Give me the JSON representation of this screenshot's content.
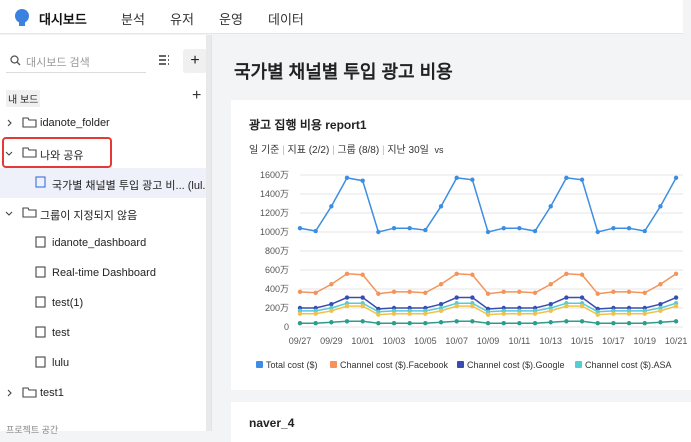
{
  "nav": {
    "brand": "대시보드",
    "items": [
      "분석",
      "유저",
      "운영",
      "데이터"
    ]
  },
  "sidebar": {
    "search_placeholder": "대시보드 검색",
    "section": "내 보드",
    "tree": [
      "idanote_folder",
      "나와 공유",
      "국가별 채널별 투입 광고 비... (lul...",
      "그룹이 지정되지 않음",
      "idanote_dashboard",
      "Real-time Dashboard",
      "test(1)",
      "test",
      "lulu",
      "test1"
    ],
    "footer": "프로젝트 공간"
  },
  "page_title": "국가별 채널별 투입 광고 비용",
  "card": {
    "title": "광고 집행 비용 report1",
    "filters": [
      "일 기준",
      "지표 (2/2)",
      "그룹 (8/8)",
      "지난 30일"
    ],
    "compare": "vs"
  },
  "chart_data": {
    "type": "line",
    "categories": [
      "09/27",
      null,
      "09/29",
      null,
      "10/01",
      null,
      "10/03",
      null,
      "10/05",
      null,
      "10/07",
      null,
      "10/09",
      null,
      "10/11",
      null,
      "10/13",
      null,
      "10/15",
      null,
      "10/17",
      null,
      "10/19",
      null,
      "10/21"
    ],
    "ylim": [
      0,
      1600
    ],
    "yticks": [
      0,
      {
        "value": 200,
        "label": "200万"
      },
      {
        "value": 400,
        "label": "400万"
      },
      {
        "value": 600,
        "label": "600万"
      },
      {
        "value": 800,
        "label": "800万"
      },
      {
        "value": 1000,
        "label": "1000万"
      },
      {
        "value": 1200,
        "label": "1200万"
      },
      {
        "value": 1400,
        "label": "1400万"
      },
      {
        "value": 1600,
        "label": "1600万"
      }
    ],
    "grid": true,
    "series": [
      {
        "name": "Total cost ($)",
        "color": "#3d8ee2",
        "values": [
          1040,
          1010,
          1270,
          1570,
          1540,
          1000,
          1040,
          1040,
          1020,
          1270,
          1570,
          1550,
          1000,
          1040,
          1040,
          1010,
          1270,
          1570,
          1550,
          1000,
          1040,
          1040,
          1010,
          1270,
          1570
        ]
      },
      {
        "name": "Channel cost ($).Facebook",
        "color": "#f4935a",
        "values": [
          370,
          360,
          450,
          560,
          550,
          350,
          370,
          370,
          360,
          450,
          560,
          550,
          350,
          370,
          370,
          360,
          450,
          560,
          550,
          350,
          370,
          370,
          360,
          450,
          560
        ]
      },
      {
        "name": "Channel cost ($).Google",
        "color": "#3a4cb0",
        "values": [
          200,
          200,
          240,
          310,
          310,
          190,
          200,
          200,
          200,
          240,
          310,
          310,
          190,
          200,
          200,
          200,
          240,
          310,
          310,
          190,
          200,
          200,
          200,
          240,
          310
        ]
      },
      {
        "name": "Channel cost ($).ASA",
        "color": "#56ccd4",
        "values": [
          170,
          170,
          200,
          250,
          250,
          160,
          170,
          170,
          170,
          200,
          250,
          250,
          160,
          170,
          170,
          170,
          200,
          250,
          250,
          160,
          170,
          170,
          170,
          200,
          250
        ]
      },
      {
        "color": "#f2c14b",
        "values": [
          140,
          140,
          170,
          220,
          220,
          130,
          140,
          140,
          140,
          170,
          220,
          220,
          130,
          140,
          140,
          140,
          170,
          220,
          220,
          130,
          140,
          140,
          140,
          170,
          220
        ]
      },
      {
        "color": "#2b9c8e",
        "values": [
          40,
          40,
          50,
          60,
          60,
          40,
          40,
          40,
          40,
          50,
          60,
          60,
          40,
          40,
          40,
          40,
          50,
          60,
          60,
          40,
          40,
          40,
          40,
          50,
          60
        ]
      }
    ]
  },
  "card2": {
    "title": "naver_4"
  }
}
